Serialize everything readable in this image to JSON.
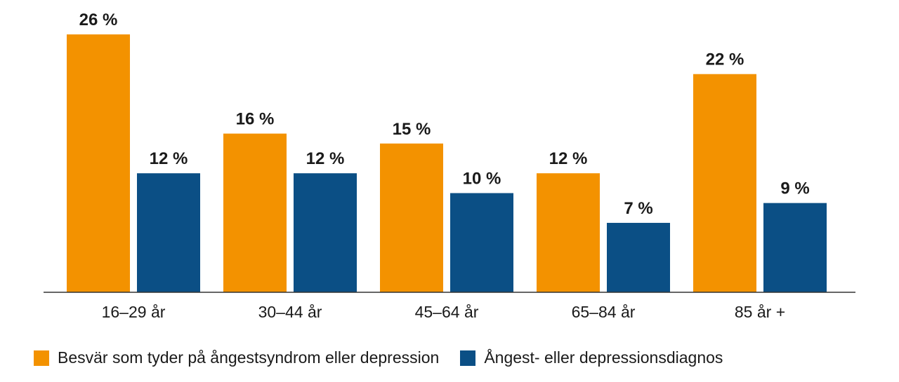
{
  "chart_data": {
    "type": "bar",
    "categories": [
      "16–29 år",
      "30–44 år",
      "45–64 år",
      "65–84 år",
      "85 år +"
    ],
    "series": [
      {
        "name": "Besvär som tyder på ångestsyndrom eller depression",
        "values": [
          26,
          16,
          15,
          12,
          22
        ],
        "labels": [
          "26 %",
          "16 %",
          "15 %",
          "12 %",
          "22 %"
        ],
        "color": "#F39200"
      },
      {
        "name": "Ångest- eller depressionsdiagnos",
        "values": [
          12,
          12,
          10,
          7,
          9
        ],
        "labels": [
          "12 %",
          "12 %",
          "10 %",
          "7 %",
          "9 %"
        ],
        "color": "#0B4F85"
      }
    ],
    "unit": "%",
    "ylim": [
      0,
      26
    ],
    "grid": false,
    "legend_position": "bottom",
    "title": "",
    "xlabel": "",
    "ylabel": ""
  }
}
